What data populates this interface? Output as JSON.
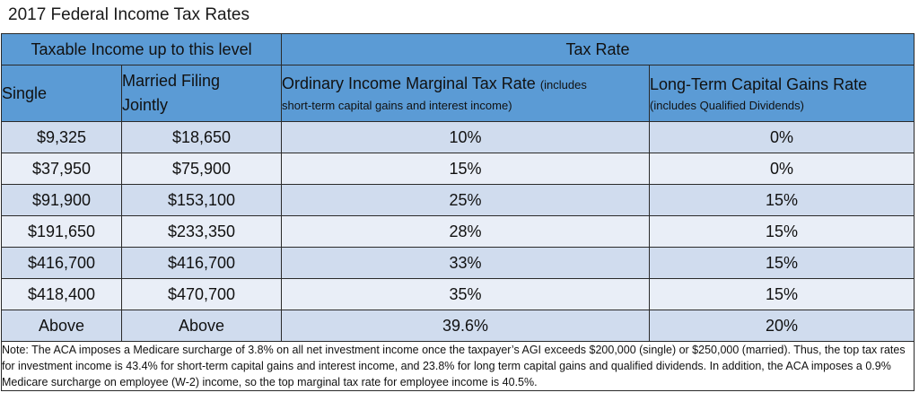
{
  "title": "2017 Federal Income Tax Rates",
  "colors": {
    "header_bg": "#5b9bd5",
    "row_odd_bg": "#d0dcee",
    "row_even_bg": "#e9eef7"
  },
  "table": {
    "group_headers": {
      "taxable_income": "Taxable Income up to this level",
      "tax_rate": "Tax Rate"
    },
    "columns": {
      "single": "Single",
      "married": "Married Filing Jointly",
      "ordinary_main": "Ordinary Income Marginal Tax Rate",
      "ordinary_sub_a": "(includes",
      "ordinary_sub_b": "short-term capital gains and interest income)",
      "ltcg_main": "Long-Term Capital Gains Rate",
      "ltcg_sub": "(includes Qualified Dividends)"
    },
    "rows": [
      {
        "single": "$9,325",
        "married": "$18,650",
        "ordinary": "10%",
        "ltcg": "0%"
      },
      {
        "single": "$37,950",
        "married": "$75,900",
        "ordinary": "15%",
        "ltcg": "0%"
      },
      {
        "single": "$91,900",
        "married": "$153,100",
        "ordinary": "25%",
        "ltcg": "15%"
      },
      {
        "single": "$191,650",
        "married": "$233,350",
        "ordinary": "28%",
        "ltcg": "15%"
      },
      {
        "single": "$416,700",
        "married": "$416,700",
        "ordinary": "33%",
        "ltcg": "15%"
      },
      {
        "single": "$418,400",
        "married": "$470,700",
        "ordinary": "35%",
        "ltcg": "15%"
      },
      {
        "single": "Above",
        "married": "Above",
        "ordinary": "39.6%",
        "ltcg": "20%"
      }
    ],
    "note": "Note: The ACA imposes a Medicare surcharge of 3.8% on all net investment income once the taxpayer’s AGI exceeds $200,000 (single) or $250,000 (married).  Thus, the top tax rates for investment income is 43.4% for short-term capital gains and interest income, and 23.8% for long term capital gains and qualified dividends.  In addition, the ACA imposes a 0.9% Medicare surcharge on employee (W-2) income, so the top marginal tax rate for employee income is 40.5%."
  }
}
